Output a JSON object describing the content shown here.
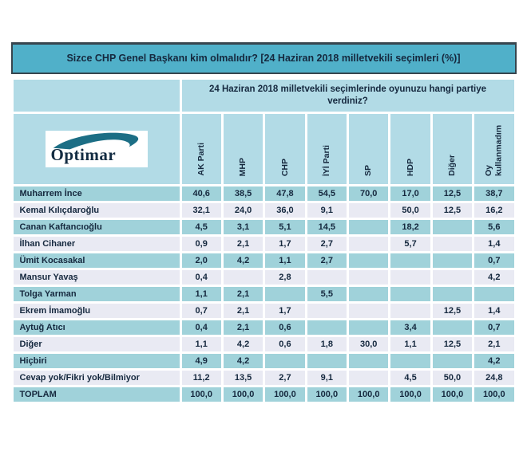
{
  "colors": {
    "title_bg": "#50b0c9",
    "title_border": "#37454e",
    "header_bg": "#b2dbe6",
    "row_teal": "#a0d2da",
    "row_light": "#e9eaf3",
    "text_dark": "#15283e",
    "logo_swoosh": "#1c6e85",
    "page_bg": "#ffffff"
  },
  "title": "Sizce CHP Genel Başkanı kim olmalıdır? [24 Haziran 2018 milletvekili seçimleri (%)]",
  "question_header": "24 Haziran 2018 milletvekili seçimlerinde oyunuzu hangi partiye verdiniz?",
  "logo": {
    "text": "Optimar"
  },
  "chart_data": {
    "type": "table",
    "title": "Sizce CHP Genel Başkanı kim olmalıdır? [24 Haziran 2018 milletvekili seçimleri (%)]",
    "group_header": "24 Haziran 2018 milletvekili seçimlerinde oyunuzu hangi partiye verdiniz?",
    "columns": [
      "AK Parti",
      "MHP",
      "CHP",
      "İYİ Parti",
      "SP",
      "HDP",
      "Diğer",
      "Oy kullanmadım"
    ],
    "rows": [
      {
        "label": "Muharrem İnce",
        "shade": "teal",
        "values": [
          "40,6",
          "38,5",
          "47,8",
          "54,5",
          "70,0",
          "17,0",
          "12,5",
          "38,7"
        ]
      },
      {
        "label": "Kemal Kılıçdaroğlu",
        "shade": "light",
        "values": [
          "32,1",
          "24,0",
          "36,0",
          "9,1",
          "",
          "50,0",
          "12,5",
          "16,2"
        ]
      },
      {
        "label": "Canan Kaftancıoğlu",
        "shade": "teal",
        "values": [
          "4,5",
          "3,1",
          "5,1",
          "14,5",
          "",
          "18,2",
          "",
          "5,6"
        ]
      },
      {
        "label": "İlhan Cihaner",
        "shade": "light",
        "values": [
          "0,9",
          "2,1",
          "1,7",
          "2,7",
          "",
          "5,7",
          "",
          "1,4"
        ]
      },
      {
        "label": "Ümit Kocasakal",
        "shade": "teal",
        "values": [
          "2,0",
          "4,2",
          "1,1",
          "2,7",
          "",
          "",
          "",
          "0,7"
        ]
      },
      {
        "label": "Mansur Yavaş",
        "shade": "light",
        "values": [
          "0,4",
          "",
          "2,8",
          "",
          "",
          "",
          "",
          "4,2"
        ]
      },
      {
        "label": "Tolga Yarman",
        "shade": "teal",
        "values": [
          "1,1",
          "2,1",
          "",
          "5,5",
          "",
          "",
          "",
          ""
        ]
      },
      {
        "label": "Ekrem İmamoğlu",
        "shade": "light",
        "values": [
          "0,7",
          "2,1",
          "1,7",
          "",
          "",
          "",
          "12,5",
          "1,4"
        ]
      },
      {
        "label": "Aytuğ Atıcı",
        "shade": "teal",
        "values": [
          "0,4",
          "2,1",
          "0,6",
          "",
          "",
          "3,4",
          "",
          "0,7"
        ]
      },
      {
        "label": "Diğer",
        "shade": "light",
        "values": [
          "1,1",
          "4,2",
          "0,6",
          "1,8",
          "30,0",
          "1,1",
          "12,5",
          "2,1"
        ]
      },
      {
        "label": "Hiçbiri",
        "shade": "teal",
        "values": [
          "4,9",
          "4,2",
          "",
          "",
          "",
          "",
          "",
          "4,2"
        ]
      },
      {
        "label": "Cevap yok/Fikri yok/Bilmiyor",
        "shade": "light",
        "values": [
          "11,2",
          "13,5",
          "2,7",
          "9,1",
          "",
          "4,5",
          "50,0",
          "24,8"
        ]
      },
      {
        "label": "TOPLAM",
        "shade": "teal",
        "values": [
          "100,0",
          "100,0",
          "100,0",
          "100,0",
          "100,0",
          "100,0",
          "100,0",
          "100,0"
        ]
      }
    ]
  }
}
